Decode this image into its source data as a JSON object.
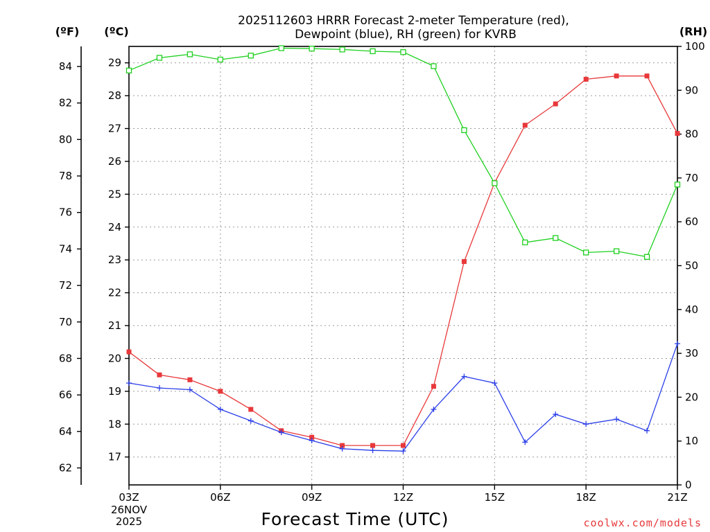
{
  "chart_data": {
    "type": "line",
    "title_line1": "2025112603 HRRR Forecast 2-meter Temperature (red),",
    "title_line2": "Dewpoint (blue), RH (green) for KVRB",
    "unit_f": "(ºF)",
    "unit_c": "(ºC)",
    "unit_rh": "(RH)",
    "xlabel": "Forecast Time (UTC)",
    "credit": "coolwx.com/models",
    "x_hours": [
      3,
      4,
      5,
      6,
      7,
      8,
      9,
      10,
      11,
      12,
      13,
      14,
      15,
      16,
      17,
      18,
      19,
      20,
      21
    ],
    "x_ticks": [
      {
        "hour": 3,
        "label": "03Z"
      },
      {
        "hour": 6,
        "label": "06Z"
      },
      {
        "hour": 9,
        "label": "09Z"
      },
      {
        "hour": 12,
        "label": "12Z"
      },
      {
        "hour": 15,
        "label": "15Z"
      },
      {
        "hour": 18,
        "label": "18Z"
      },
      {
        "hour": 21,
        "label": "21Z"
      }
    ],
    "date_label_line1": "26NOV",
    "date_label_line2": "2025",
    "x_range": [
      3,
      21
    ],
    "c_range": [
      16.15,
      29.5
    ],
    "c_ticks": [
      17,
      18,
      19,
      20,
      21,
      22,
      23,
      24,
      25,
      26,
      27,
      28,
      29
    ],
    "f_ticks": [
      62,
      64,
      66,
      68,
      70,
      72,
      74,
      76,
      78,
      80,
      82,
      84
    ],
    "rh_range": [
      0,
      100
    ],
    "rh_ticks": [
      0,
      10,
      20,
      30,
      40,
      50,
      60,
      70,
      80,
      90,
      100
    ],
    "colors": {
      "temperature": "#e8383a",
      "dewpoint": "#2a3ee8",
      "rh": "#1ed01e"
    },
    "series": [
      {
        "name": "Temperature (°C)",
        "axis": "c",
        "marker": "filled-square",
        "values": [
          20.2,
          19.5,
          19.35,
          19.0,
          18.45,
          17.8,
          17.6,
          17.35,
          17.35,
          17.35,
          19.15,
          22.95,
          25.35,
          27.1,
          27.75,
          28.5,
          28.6,
          28.6,
          26.85
        ]
      },
      {
        "name": "Dewpoint (°C)",
        "axis": "c",
        "marker": "plus",
        "values": [
          19.25,
          19.1,
          19.05,
          18.45,
          18.1,
          17.75,
          17.5,
          17.25,
          17.2,
          17.18,
          18.45,
          19.45,
          19.25,
          17.45,
          18.3,
          18.0,
          18.15,
          17.8,
          20.45
        ]
      },
      {
        "name": "RH (%)",
        "axis": "rh",
        "marker": "open-square",
        "values": [
          94.5,
          97.4,
          98.2,
          97.0,
          97.9,
          99.6,
          99.5,
          99.3,
          98.9,
          98.7,
          95.5,
          80.9,
          68.8,
          55.3,
          56.3,
          53.0,
          53.3,
          52.0,
          68.5
        ]
      }
    ]
  }
}
